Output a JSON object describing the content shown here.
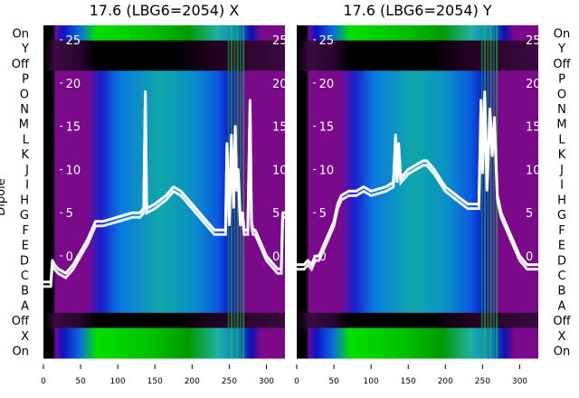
{
  "chart_data": [
    {
      "type": "heatmap",
      "title": "17.6 (LBG6=2054) X",
      "ylabel": "Dipole",
      "row_labels": [
        "On",
        "Y",
        "Off",
        "P",
        "O",
        "N",
        "M",
        "L",
        "K",
        "J",
        "I",
        "H",
        "G",
        "F",
        "E",
        "D",
        "C",
        "B",
        "A",
        "Off",
        "X",
        "On"
      ],
      "xticks": [
        0,
        50,
        100,
        150,
        200,
        250,
        300
      ],
      "xlim": [
        0,
        325
      ],
      "overlay_yticks": [
        0,
        5,
        10,
        15,
        20,
        25
      ],
      "overlay_ylim": [
        -3,
        26
      ],
      "overlay_line": {
        "x": [
          0,
          10,
          12,
          15,
          20,
          30,
          40,
          50,
          60,
          70,
          80,
          100,
          120,
          130,
          135,
          137,
          139,
          150,
          165,
          175,
          185,
          200,
          215,
          230,
          240,
          245,
          247,
          250,
          253,
          256,
          258,
          260,
          262,
          265,
          268,
          270,
          275,
          278,
          280,
          282,
          285,
          300,
          315,
          318,
          320,
          322,
          325
        ],
        "y": [
          -3,
          -3,
          -0.5,
          -1,
          -1.5,
          -2,
          -1,
          0.5,
          2,
          4,
          4,
          4.5,
          5,
          5,
          5.5,
          19,
          5.5,
          6,
          7,
          8,
          7.5,
          6,
          4.5,
          3,
          3,
          3,
          13,
          4,
          14,
          6,
          15,
          8,
          10,
          4,
          5,
          3,
          3,
          18,
          4,
          3,
          3,
          0,
          -1.5,
          -1.5,
          -1.5,
          5,
          5
        ]
      }
    },
    {
      "type": "heatmap",
      "title": "17.6 (LBG6=2054) Y",
      "row_labels": [
        "On",
        "Y",
        "Off",
        "P",
        "O",
        "N",
        "M",
        "L",
        "K",
        "J",
        "I",
        "H",
        "G",
        "F",
        "E",
        "D",
        "C",
        "B",
        "A",
        "Off",
        "X",
        "On"
      ],
      "xticks": [
        0,
        50,
        100,
        150,
        200,
        250,
        300
      ],
      "xlim": [
        0,
        325
      ],
      "overlay_yticks": [
        0,
        5,
        10,
        15,
        20,
        25
      ],
      "overlay_ylim": [
        -3,
        26
      ],
      "overlay_line": {
        "x": [
          0,
          10,
          15,
          20,
          25,
          30,
          40,
          50,
          55,
          60,
          70,
          80,
          90,
          100,
          120,
          130,
          133,
          135,
          137,
          140,
          150,
          160,
          170,
          175,
          185,
          200,
          215,
          230,
          240,
          245,
          248,
          250,
          253,
          256,
          260,
          263,
          266,
          270,
          275,
          280,
          290,
          300,
          310,
          325
        ],
        "y": [
          -1,
          -1,
          -0.5,
          -1,
          0,
          0,
          2,
          4,
          6,
          7,
          7.5,
          7.5,
          8,
          7.5,
          8,
          8.5,
          14,
          9,
          13,
          9,
          10,
          10.5,
          11,
          11,
          10,
          8,
          7,
          6,
          6,
          6,
          18,
          10,
          19,
          8,
          17,
          12,
          16,
          7,
          5,
          4,
          2,
          0,
          -1,
          -1
        ]
      }
    }
  ]
}
